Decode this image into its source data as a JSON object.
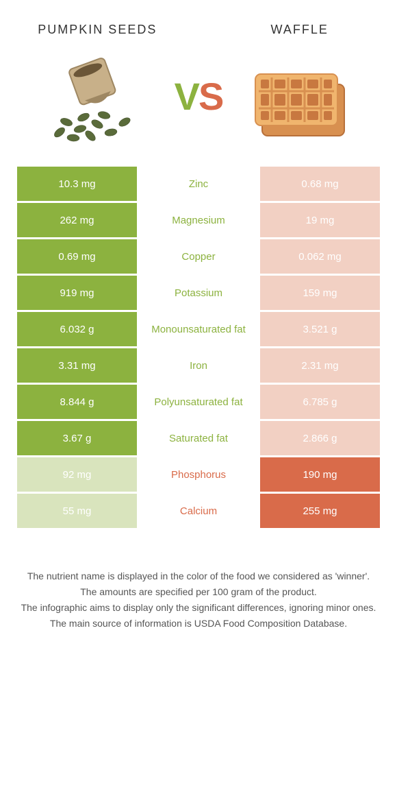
{
  "colors": {
    "left_strong": "#8cb23f",
    "left_weak": "#d9e4bd",
    "right_strong": "#d96b4a",
    "right_weak": "#f2d0c3",
    "background": "#ffffff",
    "text": "#333333",
    "footnote_text": "#555555"
  },
  "typography": {
    "title_fontsize": 18,
    "title_letterspacing": 2,
    "vs_fontsize": 56,
    "cell_fontsize": 15,
    "footnote_fontsize": 14
  },
  "foods": {
    "left": {
      "name": "Pumpkin\nseeds",
      "image_alt": "pumpkin-seeds"
    },
    "right": {
      "name": "Waffle",
      "image_alt": "waffle"
    }
  },
  "vs_label": {
    "v": "V",
    "s": "S"
  },
  "rows": [
    {
      "nutrient": "Zinc",
      "left": "10.3 mg",
      "right": "0.68 mg",
      "winner": "left"
    },
    {
      "nutrient": "Magnesium",
      "left": "262 mg",
      "right": "19 mg",
      "winner": "left"
    },
    {
      "nutrient": "Copper",
      "left": "0.69 mg",
      "right": "0.062 mg",
      "winner": "left"
    },
    {
      "nutrient": "Potassium",
      "left": "919 mg",
      "right": "159 mg",
      "winner": "left"
    },
    {
      "nutrient": "Monounsaturated fat",
      "left": "6.032 g",
      "right": "3.521 g",
      "winner": "left"
    },
    {
      "nutrient": "Iron",
      "left": "3.31 mg",
      "right": "2.31 mg",
      "winner": "left"
    },
    {
      "nutrient": "Polyunsaturated fat",
      "left": "8.844 g",
      "right": "6.785 g",
      "winner": "left"
    },
    {
      "nutrient": "Saturated fat",
      "left": "3.67 g",
      "right": "2.866 g",
      "winner": "left"
    },
    {
      "nutrient": "Phosphorus",
      "left": "92 mg",
      "right": "190 mg",
      "winner": "right"
    },
    {
      "nutrient": "Calcium",
      "left": "55 mg",
      "right": "255 mg",
      "winner": "right"
    }
  ],
  "footnotes": [
    "The nutrient name is displayed in the color of the food we considered as 'winner'.",
    "The amounts are specified per 100 gram of the product.",
    "The infographic aims to display only the significant differences, ignoring minor ones.",
    "The main source of information is USDA Food Composition Database."
  ]
}
